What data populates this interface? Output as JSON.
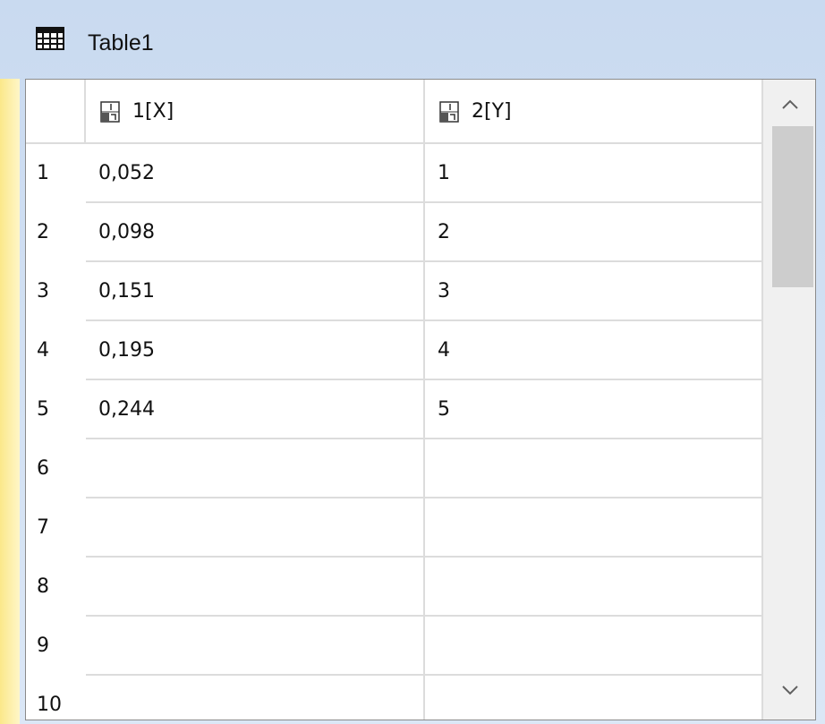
{
  "window": {
    "title": "Table1"
  },
  "table": {
    "headers": [
      "1[X]",
      "2[Y]"
    ],
    "rows": [
      [
        "1",
        "0,052",
        "1"
      ],
      [
        "2",
        "0,098",
        "2"
      ],
      [
        "3",
        "0,151",
        "3"
      ],
      [
        "4",
        "0,195",
        "4"
      ],
      [
        "5",
        "0,244",
        "5"
      ],
      [
        "6"
      ],
      [
        "7"
      ],
      [
        "8"
      ],
      [
        "9"
      ],
      [
        "10"
      ]
    ]
  }
}
